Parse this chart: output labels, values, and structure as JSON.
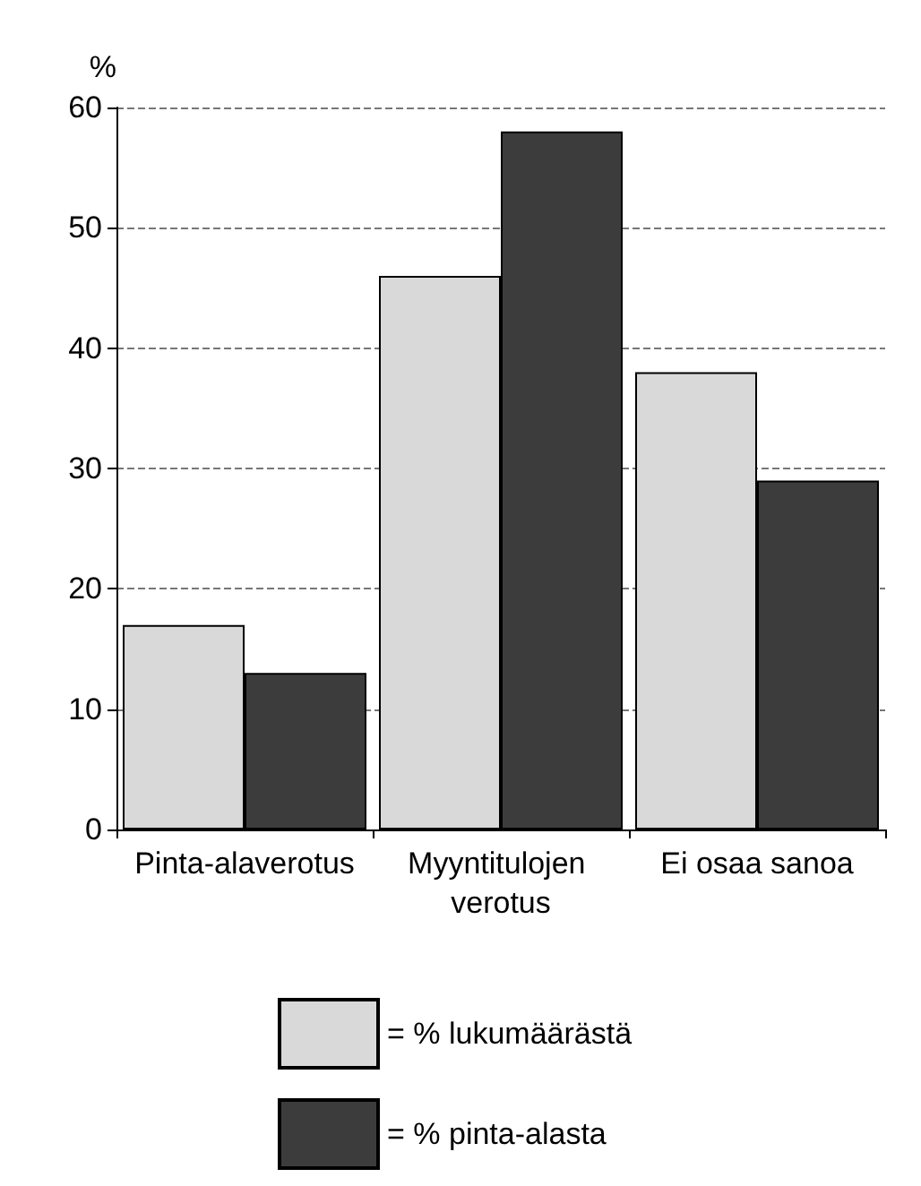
{
  "chart_data": {
    "type": "bar",
    "ylabel": "%",
    "categories": [
      "Pinta-alaverotus",
      "Myyntitulojen verotus",
      "Ei osaa sanoa"
    ],
    "series": [
      {
        "name": "= % lukumäärästä",
        "color": "#d9d9d9",
        "values": [
          17,
          46,
          38
        ]
      },
      {
        "name": "= % pinta-alasta",
        "color": "#3c3c3c",
        "values": [
          13,
          58,
          29
        ]
      }
    ],
    "ylim": [
      0,
      60
    ],
    "yticks": [
      0,
      10,
      20,
      30,
      40,
      50,
      60
    ],
    "grid": "y",
    "legend": "bottom"
  }
}
